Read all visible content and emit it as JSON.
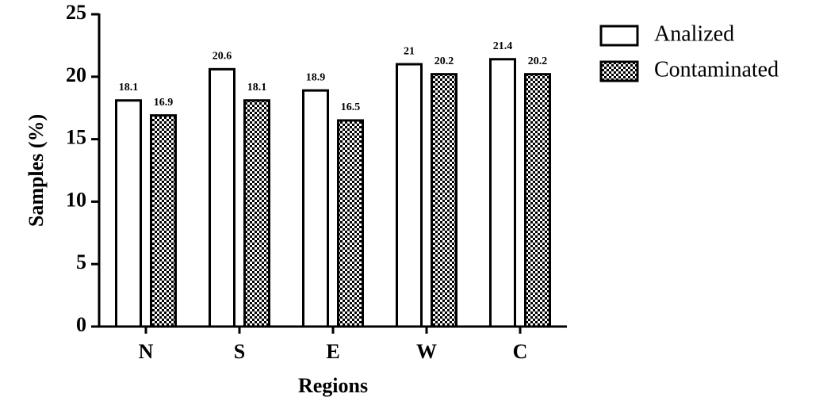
{
  "chart_data": {
    "type": "bar",
    "x_label": "Regions",
    "y_label": "Samples (%)",
    "categories": [
      "N",
      "S",
      "E",
      "W",
      "C"
    ],
    "series": [
      {
        "name": "Analized",
        "color": "#ffffff",
        "values": [
          18.1,
          20.6,
          18.9,
          21,
          21.4
        ]
      },
      {
        "name": "Contaminated",
        "color": "#000000",
        "pattern": "checker",
        "values": [
          16.9,
          18.1,
          16.5,
          20.2,
          20.2
        ]
      }
    ],
    "ylim": [
      0,
      25
    ],
    "yticks": [
      0,
      5,
      10,
      15,
      20,
      25
    ],
    "grid": false,
    "legend": "top-right"
  }
}
